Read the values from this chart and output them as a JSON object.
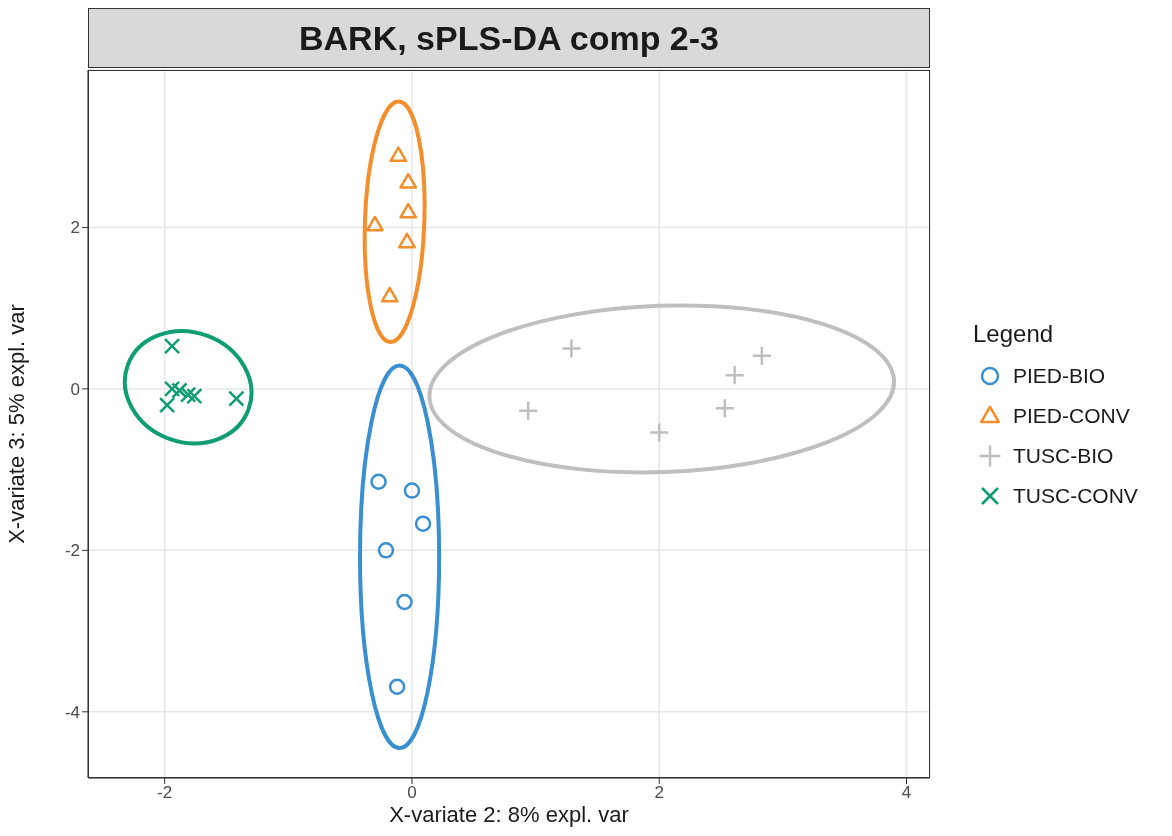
{
  "chart_data": {
    "type": "scatter",
    "title": "BARK, sPLS-DA comp 2-3",
    "xlabel": "X-variate 2: 8% expl. var",
    "ylabel": "X-variate 3: 5% expl. var",
    "legend_title": "Legend",
    "legend": "right",
    "grid": true,
    "xlim": [
      -2.62,
      4.19
    ],
    "ylim": [
      -4.82,
      3.95
    ],
    "xticks": [
      -2,
      0,
      2,
      4
    ],
    "yticks": [
      -4,
      -2,
      0,
      2
    ],
    "series": [
      {
        "name": "PIED-BIO",
        "color": "#3a8fd0",
        "marker": "circle",
        "x": [
          -0.27,
          0.0,
          0.09,
          -0.21,
          -0.06,
          -0.12
        ],
        "values": [
          -1.15,
          -1.26,
          -1.67,
          -2.0,
          -2.64,
          -3.69
        ]
      },
      {
        "name": "PIED-CONV",
        "color": "#f28e2b",
        "marker": "triangle",
        "x": [
          -0.11,
          -0.03,
          -0.03,
          -0.3,
          -0.04,
          -0.18
        ],
        "values": [
          2.89,
          2.56,
          2.19,
          2.03,
          1.82,
          1.15
        ]
      },
      {
        "name": "TUSC-BIO",
        "color": "#bfbfbf",
        "marker": "cross",
        "x": [
          1.29,
          0.94,
          2.0,
          2.53,
          2.61,
          2.83
        ],
        "values": [
          0.5,
          -0.27,
          -0.54,
          -0.24,
          0.17,
          0.41
        ]
      },
      {
        "name": "TUSC-CONV",
        "color": "#0f9e73",
        "marker": "x",
        "x": [
          -1.94,
          -1.98,
          -1.94,
          -1.88,
          -1.81,
          -1.76,
          -1.42
        ],
        "values": [
          0.53,
          -0.2,
          0,
          -0.02,
          -0.07,
          -0.09,
          -0.12
        ]
      }
    ]
  }
}
